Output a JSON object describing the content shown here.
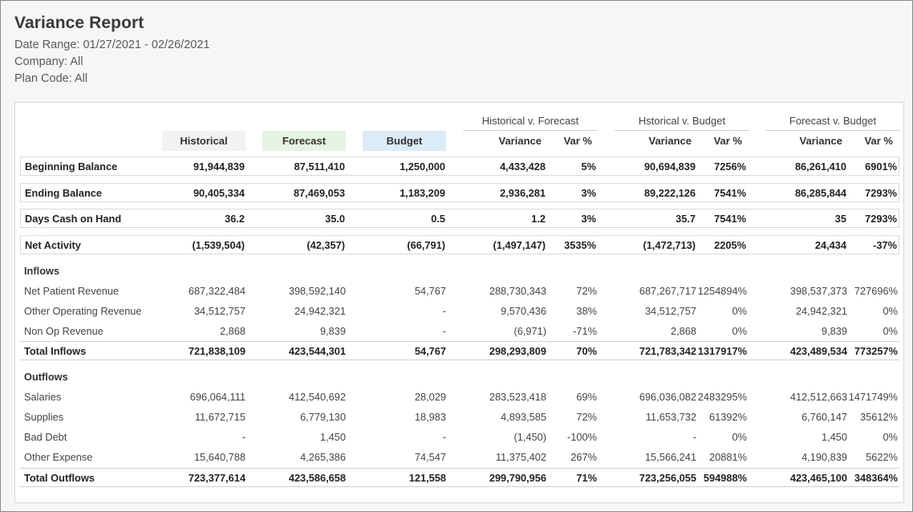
{
  "report": {
    "title": "Variance Report",
    "date_range": "Date Range: 01/27/2021 - 02/26/2021",
    "company": "Company: All",
    "plan_code": "Plan Code: All"
  },
  "colors": {
    "historical_bg": "#f1f2f4",
    "forecast_bg": "#e6f4e3",
    "budget_bg": "#dcebf8"
  },
  "groups": [
    "Historical v. Forecast",
    "Hstorical v. Budget",
    "Forecast v. Budget"
  ],
  "columns": {
    "historical": "Historical",
    "forecast": "Forecast",
    "budget": "Budget",
    "variance": "Variance",
    "var_pct": "Var %"
  },
  "rows": [
    {
      "label": "Beginning Balance",
      "values": [
        "91,944,839",
        "87,511,410",
        "1,250,000",
        "4,433,428",
        "5%",
        "90,694,839",
        "7256%",
        "86,261,410",
        "6901%"
      ]
    },
    {
      "label": "Ending Balance",
      "values": [
        "90,405,334",
        "87,469,053",
        "1,183,209",
        "2,936,281",
        "3%",
        "89,222,126",
        "7541%",
        "86,285,844",
        "7293%"
      ]
    },
    {
      "label": "Days Cash on Hand",
      "values": [
        "36.2",
        "35.0",
        "0.5",
        "1.2",
        "3%",
        "35.7",
        "7541%",
        "35",
        "7293%"
      ]
    },
    {
      "label": "Net Activity",
      "values": [
        "(1,539,504)",
        "(42,357)",
        "(66,791)",
        "(1,497,147)",
        "3535%",
        "(1,472,713)",
        "2205%",
        "24,434",
        "-37%"
      ]
    },
    {
      "label": "Net Patient Revenue",
      "values": [
        "687,322,484",
        "398,592,140",
        "54,767",
        "288,730,343",
        "72%",
        "687,267,717",
        "1254894%",
        "398,537,373",
        "727696%"
      ]
    },
    {
      "label": "Other Operating Revenue",
      "values": [
        "34,512,757",
        "24,942,321",
        "-",
        "9,570,436",
        "38%",
        "34,512,757",
        "0%",
        "24,942,321",
        "0%"
      ]
    },
    {
      "label": "Non Op Revenue",
      "values": [
        "2,868",
        "9,839",
        "-",
        "(6,971)",
        "-71%",
        "2,868",
        "0%",
        "9,839",
        "0%"
      ]
    },
    {
      "label": "Total Inflows",
      "values": [
        "721,838,109",
        "423,544,301",
        "54,767",
        "298,293,809",
        "70%",
        "721,783,342",
        "1317917%",
        "423,489,534",
        "773257%"
      ]
    },
    {
      "label": "Salaries",
      "values": [
        "696,064,111",
        "412,540,692",
        "28,029",
        "283,523,418",
        "69%",
        "696,036,082",
        "2483295%",
        "412,512,663",
        "1471749%"
      ]
    },
    {
      "label": "Supplies",
      "values": [
        "11,672,715",
        "6,779,130",
        "18,983",
        "4,893,585",
        "72%",
        "11,653,732",
        "61392%",
        "6,760,147",
        "35612%"
      ]
    },
    {
      "label": "Bad Debt",
      "values": [
        "-",
        "1,450",
        "-",
        "(1,450)",
        "-100%",
        "-",
        "0%",
        "1,450",
        "0%"
      ]
    },
    {
      "label": "Other Expense",
      "values": [
        "15,640,788",
        "4,265,386",
        "74,547",
        "11,375,402",
        "267%",
        "15,566,241",
        "20881%",
        "4,190,839",
        "5622%"
      ]
    },
    {
      "label": "Total Outflows",
      "values": [
        "723,377,614",
        "423,586,658",
        "121,558",
        "299,790,956",
        "71%",
        "723,256,055",
        "594988%",
        "423,465,100",
        "348364%"
      ]
    }
  ],
  "sections": {
    "inflows": "Inflows",
    "outflows": "Outflows"
  }
}
